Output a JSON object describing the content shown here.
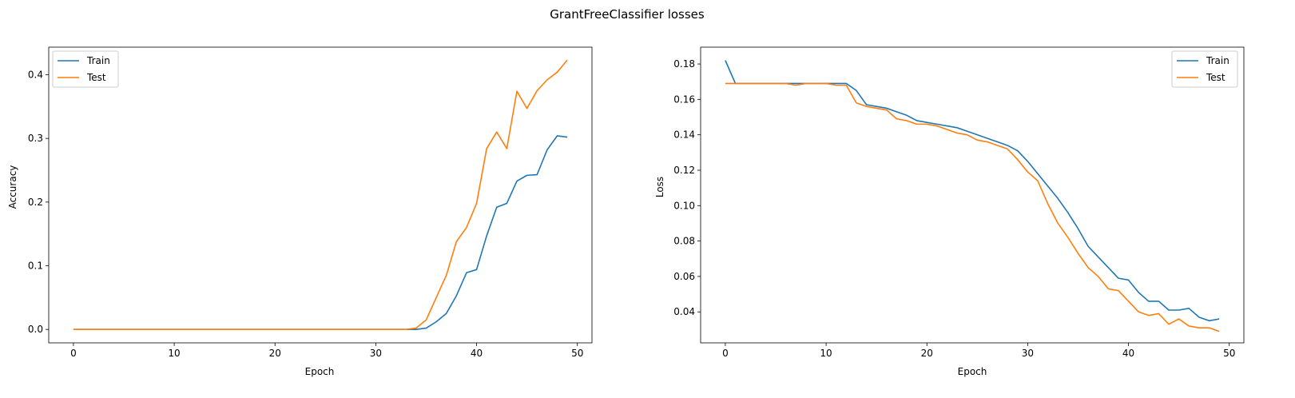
{
  "figure": {
    "suptitle": "GrantFreeClassifier losses"
  },
  "chart_data": [
    {
      "type": "line",
      "xlabel": "Epoch",
      "ylabel": "Accuracy",
      "xlim": [
        -2.45,
        51.45
      ],
      "ylim": [
        -0.0211,
        0.4433
      ],
      "xticks": [
        0,
        10,
        20,
        30,
        40,
        50
      ],
      "yticks": [
        0.0,
        0.1,
        0.2,
        0.3,
        0.4
      ],
      "ytick_labels": [
        "0.0",
        "0.1",
        "0.2",
        "0.3",
        "0.4"
      ],
      "grid": false,
      "legend_position": "top-left",
      "series": [
        {
          "name": "Train",
          "color": "#1f77b4",
          "values": [
            0,
            0,
            0,
            0,
            0,
            0,
            0,
            0,
            0,
            0,
            0,
            0,
            0,
            0,
            0,
            0,
            0,
            0,
            0,
            0,
            0,
            0,
            0,
            0,
            0,
            0,
            0,
            0,
            0,
            0,
            0,
            0,
            0,
            0,
            0,
            0.002,
            0.012,
            0.025,
            0.053,
            0.089,
            0.094,
            0.147,
            0.192,
            0.198,
            0.233,
            0.242,
            0.243,
            0.282,
            0.304,
            0.302
          ]
        },
        {
          "name": "Test",
          "color": "#ff7f0e",
          "values": [
            0,
            0,
            0,
            0,
            0,
            0,
            0,
            0,
            0,
            0,
            0,
            0,
            0,
            0,
            0,
            0,
            0,
            0,
            0,
            0,
            0,
            0,
            0,
            0,
            0,
            0,
            0,
            0,
            0,
            0,
            0,
            0,
            0,
            0,
            0.002,
            0.015,
            0.05,
            0.085,
            0.138,
            0.16,
            0.198,
            0.284,
            0.31,
            0.284,
            0.374,
            0.347,
            0.375,
            0.392,
            0.404,
            0.423
          ]
        }
      ]
    },
    {
      "type": "line",
      "xlabel": "Epoch",
      "ylabel": "Loss",
      "xlim": [
        -2.45,
        51.45
      ],
      "ylim": [
        0.0225,
        0.1895
      ],
      "xticks": [
        0,
        10,
        20,
        30,
        40,
        50
      ],
      "yticks": [
        0.04,
        0.06,
        0.08,
        0.1,
        0.12,
        0.14,
        0.16,
        0.18
      ],
      "ytick_labels": [
        "0.04",
        "0.06",
        "0.08",
        "0.10",
        "0.12",
        "0.14",
        "0.16",
        "0.18"
      ],
      "grid": false,
      "legend_position": "top-right",
      "series": [
        {
          "name": "Train",
          "color": "#1f77b4",
          "values": [
            0.182,
            0.169,
            0.169,
            0.169,
            0.169,
            0.169,
            0.169,
            0.169,
            0.169,
            0.169,
            0.169,
            0.169,
            0.169,
            0.165,
            0.157,
            0.156,
            0.155,
            0.153,
            0.151,
            0.148,
            0.147,
            0.146,
            0.145,
            0.144,
            0.142,
            0.14,
            0.138,
            0.136,
            0.134,
            0.131,
            0.125,
            0.118,
            0.111,
            0.104,
            0.096,
            0.087,
            0.077,
            0.071,
            0.065,
            0.059,
            0.058,
            0.051,
            0.046,
            0.046,
            0.041,
            0.041,
            0.042,
            0.037,
            0.035,
            0.036
          ]
        },
        {
          "name": "Test",
          "color": "#ff7f0e",
          "values": [
            0.169,
            0.169,
            0.169,
            0.169,
            0.169,
            0.169,
            0.169,
            0.168,
            0.169,
            0.169,
            0.169,
            0.168,
            0.168,
            0.158,
            0.156,
            0.155,
            0.154,
            0.149,
            0.148,
            0.146,
            0.146,
            0.145,
            0.143,
            0.141,
            0.14,
            0.137,
            0.136,
            0.134,
            0.132,
            0.126,
            0.119,
            0.114,
            0.101,
            0.09,
            0.082,
            0.073,
            0.065,
            0.06,
            0.053,
            0.052,
            0.046,
            0.04,
            0.038,
            0.039,
            0.033,
            0.036,
            0.032,
            0.031,
            0.031,
            0.029
          ]
        }
      ]
    }
  ]
}
